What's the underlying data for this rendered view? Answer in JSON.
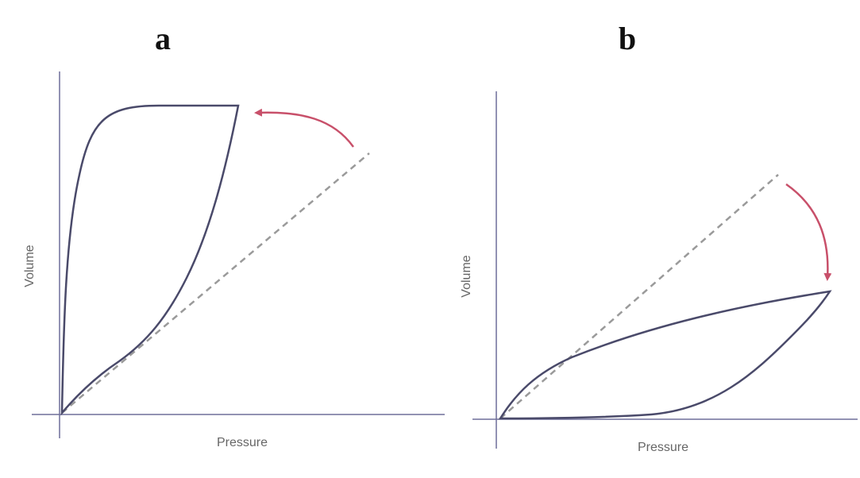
{
  "panels": [
    {
      "label": "a",
      "y_label": "Volume",
      "x_label": "Pressure"
    },
    {
      "label": "b",
      "y_label": "Volume",
      "x_label": "Pressure"
    }
  ]
}
